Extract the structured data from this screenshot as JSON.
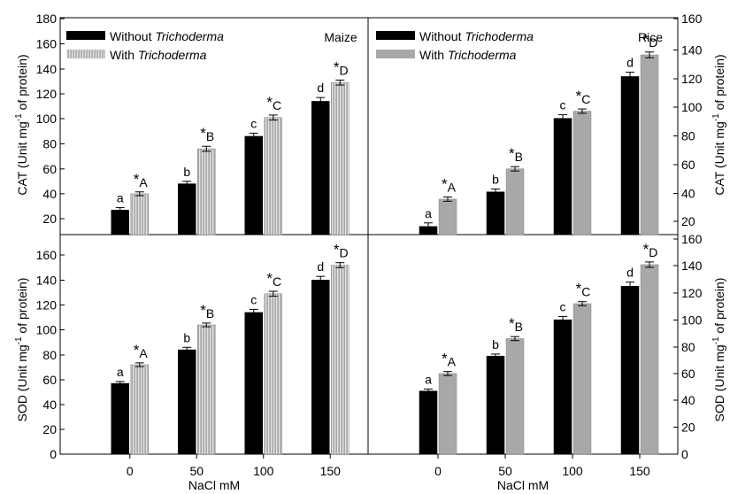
{
  "colors": {
    "without": "#000000",
    "with": "#a8a8a8",
    "with_stripe": "#d8d8d8",
    "axis": "#000000"
  },
  "chart_data": [
    {
      "type": "bar",
      "panel": "Maize",
      "categories": [
        "0",
        "50",
        "100",
        "150"
      ],
      "xlabel": "",
      "ylabel": "CAT (Unit mg-1 of protein)",
      "ylim": [
        10,
        180
      ],
      "yticks": [
        "20",
        "40",
        "60",
        "80",
        "100",
        "120",
        "140",
        "160",
        "180"
      ],
      "legend": {
        "without_prefix": "Without ",
        "with_prefix": "With ",
        "italic": "Trichoderma"
      },
      "series": [
        {
          "name": "Without Trichoderma",
          "values": [
            27,
            48,
            86,
            114
          ],
          "errors": [
            2,
            2,
            2.5,
            3
          ],
          "labels": [
            "a",
            "b",
            "c",
            "d"
          ]
        },
        {
          "name": "With Trichoderma",
          "values": [
            40,
            76,
            101,
            129
          ],
          "errors": [
            1.5,
            2,
            2,
            2
          ],
          "labels": [
            "*A",
            "*B",
            "*C",
            "*D"
          ]
        }
      ]
    },
    {
      "type": "bar",
      "panel": "Rice",
      "categories": [
        "0",
        "50",
        "100",
        "150"
      ],
      "xlabel": "",
      "ylabel": "CAT (Unit mg-1 of protein)",
      "ylim": [
        10,
        160
      ],
      "yticks": [
        "20",
        "40",
        "60",
        "80",
        "100",
        "120",
        "140",
        "160"
      ],
      "legend": {
        "without_prefix": "Without ",
        "with_prefix": "With ",
        "italic": "Trichoderma"
      },
      "series": [
        {
          "name": "Without Trichoderma",
          "values": [
            17,
            41,
            92,
            121
          ],
          "errors": [
            2.5,
            2,
            2.5,
            3
          ],
          "labels": [
            "a",
            "b",
            "c",
            "d"
          ]
        },
        {
          "name": "With Trichoderma",
          "values": [
            36,
            57,
            97,
            136
          ],
          "errors": [
            1.5,
            1.5,
            1.5,
            2
          ],
          "labels": [
            "*A",
            "*B",
            "*C",
            "*D"
          ]
        }
      ]
    },
    {
      "type": "bar",
      "panel": "",
      "categories": [
        "0",
        "50",
        "100",
        "150"
      ],
      "xlabel": "NaCl mM",
      "ylabel": "SOD (Unit mg-1 of protein)",
      "ylim": [
        0,
        170
      ],
      "yticks": [
        "0",
        "20",
        "40",
        "60",
        "80",
        "100",
        "120",
        "140",
        "160"
      ],
      "series": [
        {
          "name": "Without Trichoderma",
          "values": [
            57,
            84,
            114,
            140
          ],
          "errors": [
            1.5,
            2,
            2.5,
            3
          ],
          "labels": [
            "a",
            "b",
            "c",
            "d"
          ]
        },
        {
          "name": "With Trichoderma",
          "values": [
            72,
            104,
            129,
            152
          ],
          "errors": [
            1.5,
            1.5,
            2,
            2
          ],
          "labels": [
            "*A",
            "*B",
            "*C",
            "*D"
          ]
        }
      ]
    },
    {
      "type": "bar",
      "panel": "",
      "categories": [
        "0",
        "50",
        "100",
        "150"
      ],
      "xlabel": "NaCl mM",
      "ylabel": "SOD (Unit mg-1 of protein)",
      "ylim": [
        0,
        165
      ],
      "yticks": [
        "0",
        "20",
        "40",
        "60",
        "80",
        "100",
        "120",
        "140",
        "160"
      ],
      "series": [
        {
          "name": "Without Trichoderma",
          "values": [
            47,
            73,
            100,
            125
          ],
          "errors": [
            1.5,
            1.5,
            2.5,
            3
          ],
          "labels": [
            "a",
            "b",
            "c",
            "d"
          ]
        },
        {
          "name": "With Trichoderma",
          "values": [
            60,
            86,
            112,
            141
          ],
          "errors": [
            1.5,
            1.5,
            1.5,
            2
          ],
          "labels": [
            "*A",
            "*B",
            "*C",
            "*D"
          ]
        }
      ]
    }
  ]
}
